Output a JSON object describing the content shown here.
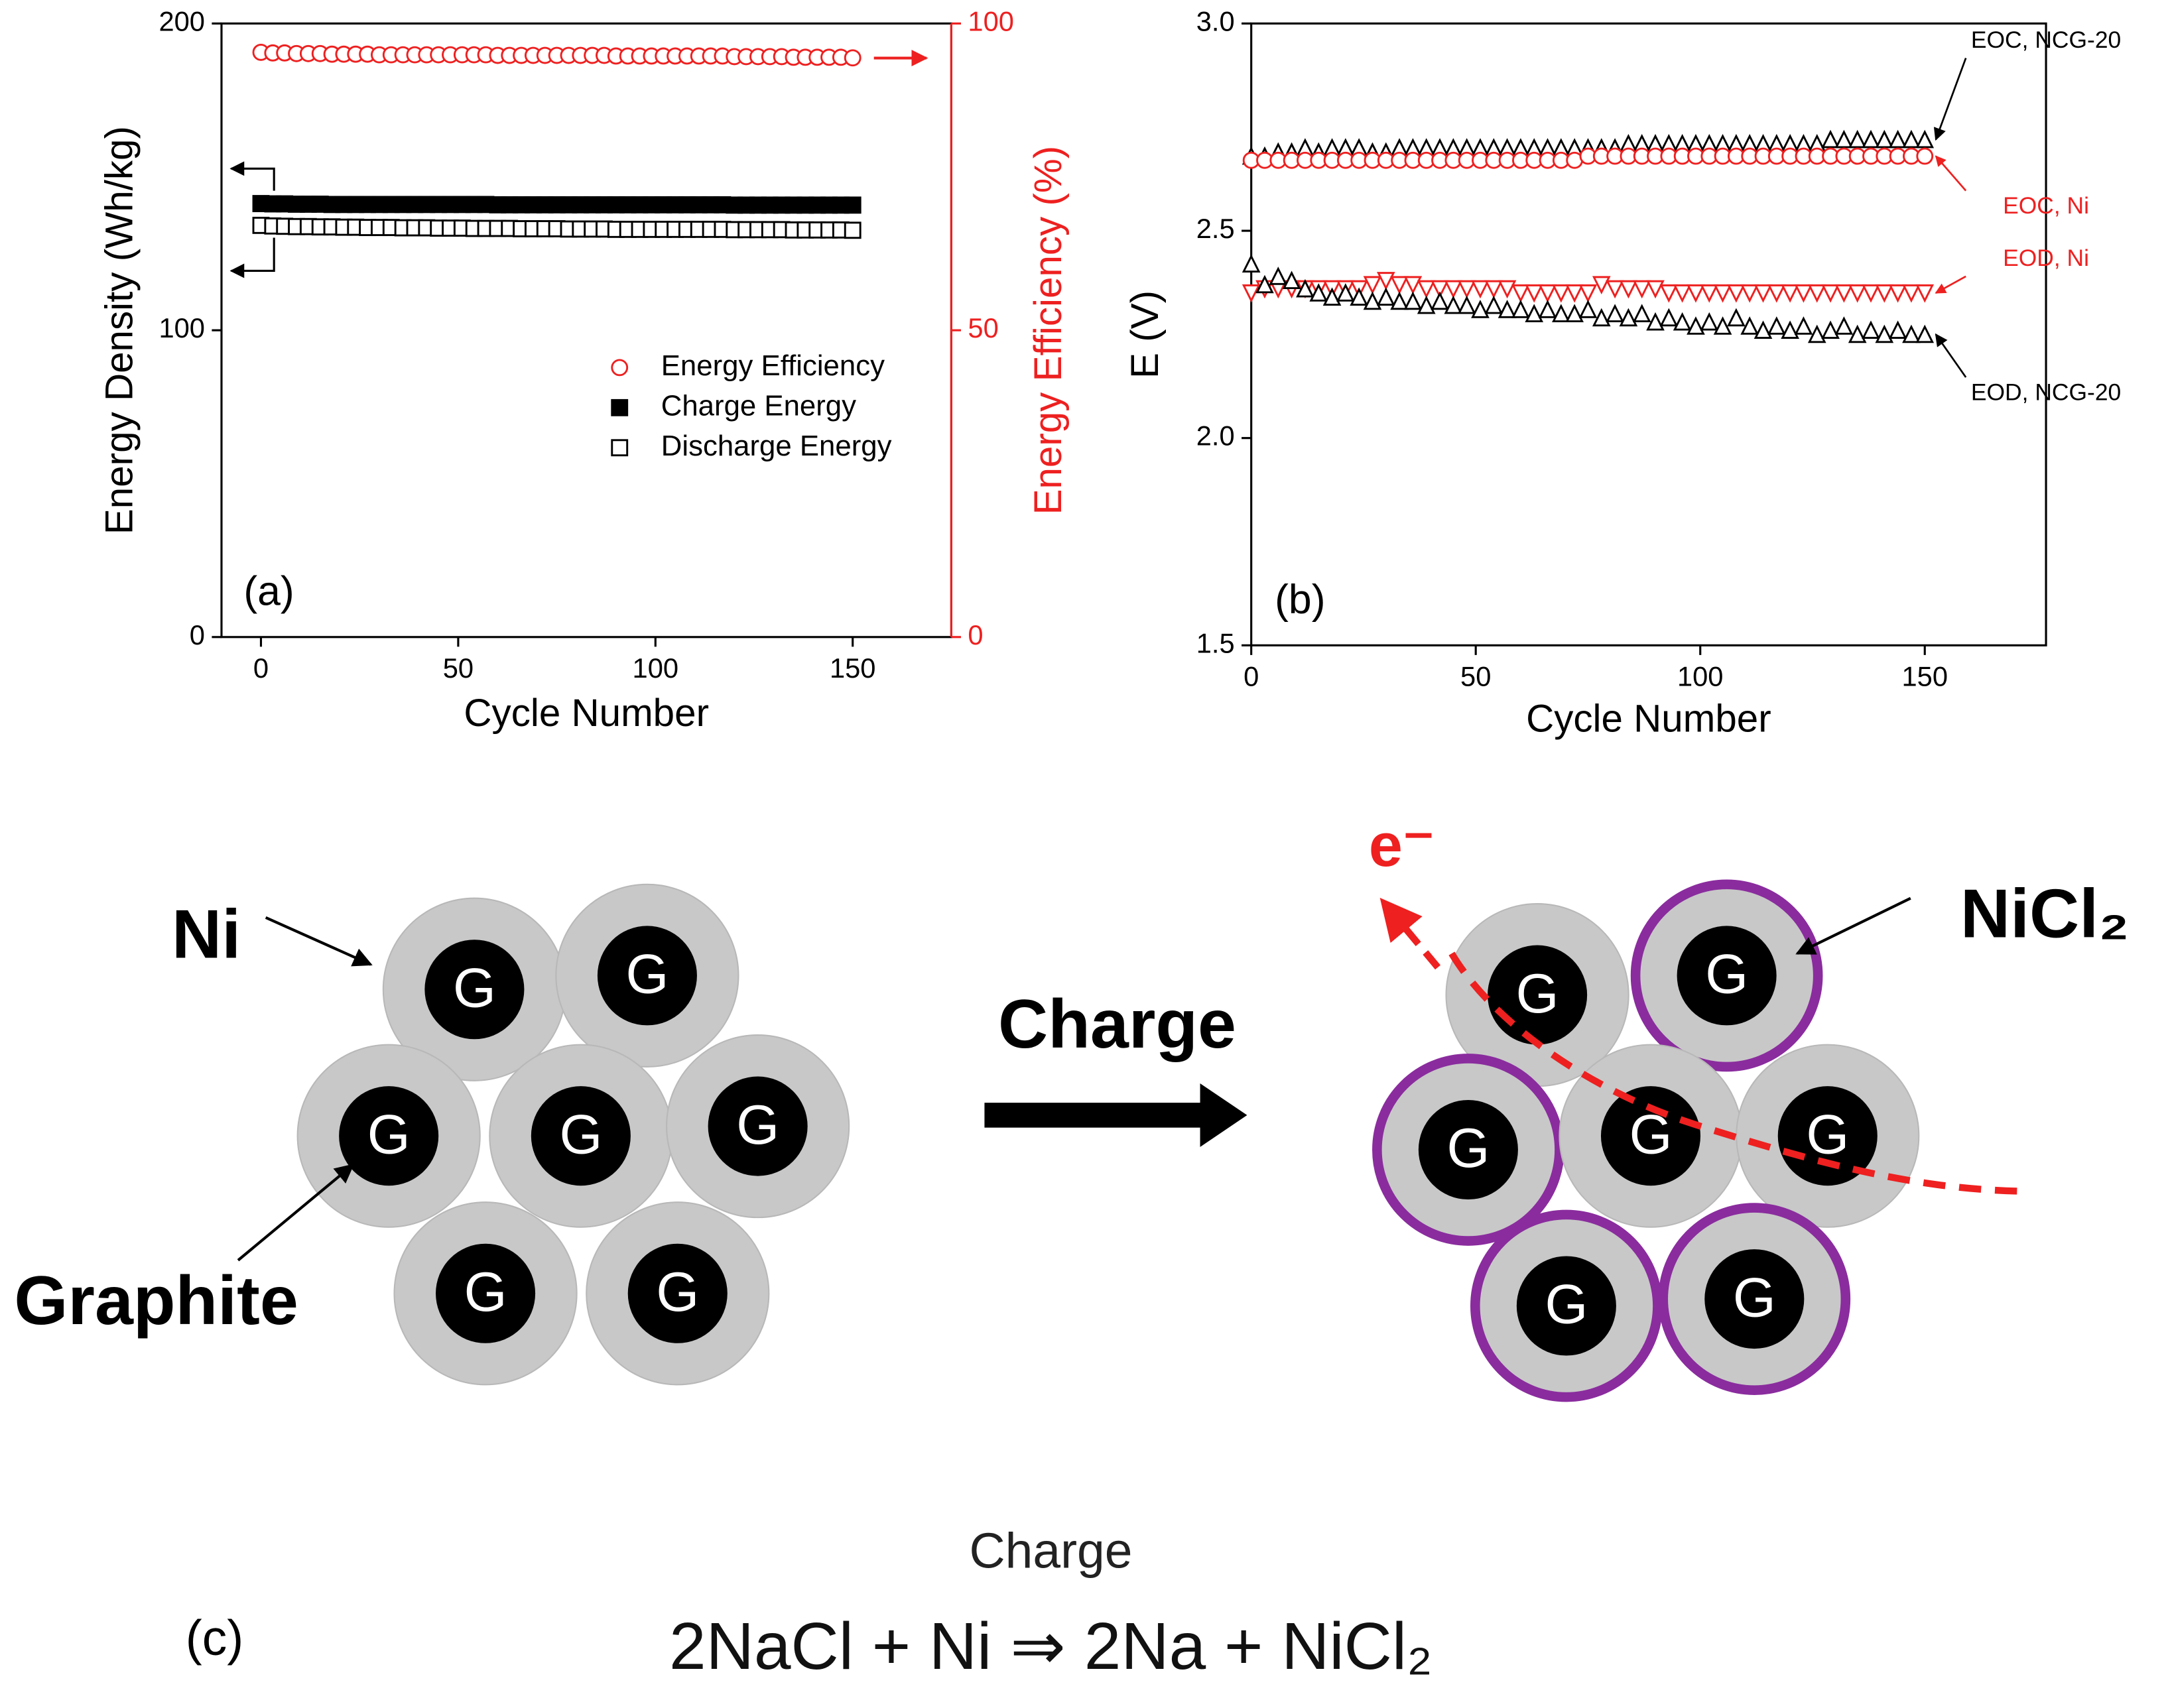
{
  "chart_data": [
    {
      "type": "scatter",
      "panel_label": "(a)",
      "xlabel": "Cycle Number",
      "ylabel": "Energy Density (Wh/kg)",
      "y2label": "Energy Efficiency (%)",
      "y2color": "#ee2020",
      "xlim": [
        -10,
        175
      ],
      "xticks": [
        0,
        50,
        100,
        150
      ],
      "ylim": [
        0,
        200
      ],
      "yticks": [
        0,
        100,
        200
      ],
      "y2lim": [
        0,
        100
      ],
      "y2ticks": [
        0,
        50,
        100
      ],
      "legend": "right",
      "x": [
        0,
        3,
        6,
        9,
        12,
        15,
        18,
        21,
        24,
        27,
        30,
        33,
        36,
        39,
        42,
        45,
        48,
        51,
        54,
        57,
        60,
        63,
        66,
        69,
        72,
        75,
        78,
        81,
        84,
        87,
        90,
        93,
        96,
        99,
        102,
        105,
        108,
        111,
        114,
        117,
        120,
        123,
        126,
        129,
        132,
        135,
        138,
        141,
        144,
        147,
        150
      ],
      "series": [
        {
          "name": "Energy Efficiency",
          "color": "#ee2020",
          "marker": "circle-open",
          "axis": "y2",
          "values": [
            95.3,
            95.2,
            95.2,
            95.1,
            95.1,
            95.1,
            95.0,
            95.0,
            95.0,
            95.0,
            94.9,
            94.9,
            94.9,
            94.9,
            94.9,
            94.9,
            94.9,
            94.9,
            94.9,
            94.9,
            94.8,
            94.8,
            94.8,
            94.8,
            94.8,
            94.8,
            94.8,
            94.8,
            94.8,
            94.8,
            94.7,
            94.7,
            94.7,
            94.7,
            94.7,
            94.7,
            94.7,
            94.7,
            94.7,
            94.7,
            94.6,
            94.6,
            94.6,
            94.6,
            94.6,
            94.5,
            94.5,
            94.5,
            94.5,
            94.5,
            94.4
          ]
        },
        {
          "name": "Charge Energy",
          "color": "#000000",
          "marker": "square-filled",
          "values": [
            141.3,
            141.2,
            141.2,
            141.1,
            141.1,
            141.1,
            141.0,
            141.0,
            141.0,
            141.0,
            141.0,
            141.0,
            141.0,
            141.0,
            141.0,
            141.0,
            141.0,
            141.0,
            141.0,
            141.0,
            140.9,
            140.9,
            140.9,
            140.9,
            140.9,
            140.9,
            140.9,
            140.9,
            140.9,
            140.9,
            140.9,
            140.9,
            140.9,
            140.9,
            140.9,
            140.9,
            140.9,
            140.9,
            140.9,
            140.9,
            140.8,
            140.8,
            140.8,
            140.8,
            140.8,
            140.8,
            140.8,
            140.8,
            140.8,
            140.8,
            140.8
          ]
        },
        {
          "name": "Discharge Energy",
          "color": "#000000",
          "marker": "square-open",
          "values": [
            134.2,
            134.0,
            133.9,
            133.8,
            133.8,
            133.7,
            133.7,
            133.6,
            133.6,
            133.5,
            133.5,
            133.5,
            133.4,
            133.4,
            133.4,
            133.3,
            133.3,
            133.3,
            133.2,
            133.2,
            133.2,
            133.2,
            133.1,
            133.1,
            133.1,
            133.1,
            133.0,
            133.0,
            133.0,
            133.0,
            132.9,
            132.9,
            132.9,
            132.9,
            132.9,
            132.9,
            132.9,
            132.9,
            132.9,
            132.9,
            132.8,
            132.8,
            132.8,
            132.8,
            132.8,
            132.7,
            132.7,
            132.7,
            132.7,
            132.7,
            132.6
          ]
        }
      ]
    },
    {
      "type": "scatter",
      "panel_label": "(b)",
      "xlabel": "Cycle Number",
      "ylabel": "E (V)",
      "xlim": [
        0,
        177
      ],
      "xticks": [
        0,
        50,
        100,
        150
      ],
      "ylim": [
        1.5,
        3.0
      ],
      "yticks": [
        1.5,
        {
          "value": 2,
          "label": "2.0"
        },
        2.5,
        {
          "value": 3,
          "label": "3.0"
        }
      ],
      "series_labels": "end",
      "x": [
        0,
        3,
        6,
        9,
        12,
        15,
        18,
        21,
        24,
        27,
        30,
        33,
        36,
        39,
        42,
        45,
        48,
        51,
        54,
        57,
        60,
        63,
        66,
        69,
        72,
        75,
        78,
        81,
        84,
        87,
        90,
        93,
        96,
        99,
        102,
        105,
        108,
        111,
        114,
        117,
        120,
        123,
        126,
        129,
        132,
        135,
        138,
        141,
        144,
        147,
        150
      ],
      "series": [
        {
          "name": "EOC, NCG-20",
          "color": "#000000",
          "marker": "triangle-up-open",
          "values": [
            2.68,
            2.68,
            2.69,
            2.69,
            2.7,
            2.69,
            2.7,
            2.7,
            2.7,
            2.69,
            2.69,
            2.7,
            2.7,
            2.7,
            2.7,
            2.7,
            2.7,
            2.7,
            2.7,
            2.7,
            2.7,
            2.7,
            2.7,
            2.7,
            2.7,
            2.7,
            2.7,
            2.7,
            2.71,
            2.71,
            2.71,
            2.71,
            2.71,
            2.71,
            2.71,
            2.71,
            2.71,
            2.71,
            2.71,
            2.71,
            2.71,
            2.71,
            2.71,
            2.72,
            2.72,
            2.72,
            2.72,
            2.72,
            2.72,
            2.72,
            2.72
          ]
        },
        {
          "name": "EOC, Ni",
          "color": "#ee2020",
          "marker": "circle-open",
          "values": [
            2.67,
            2.67,
            2.67,
            2.67,
            2.67,
            2.67,
            2.67,
            2.67,
            2.67,
            2.67,
            2.67,
            2.67,
            2.67,
            2.67,
            2.67,
            2.67,
            2.67,
            2.67,
            2.67,
            2.67,
            2.67,
            2.67,
            2.67,
            2.67,
            2.67,
            2.68,
            2.68,
            2.68,
            2.68,
            2.68,
            2.68,
            2.68,
            2.68,
            2.68,
            2.68,
            2.68,
            2.68,
            2.68,
            2.68,
            2.68,
            2.68,
            2.68,
            2.68,
            2.68,
            2.68,
            2.68,
            2.68,
            2.68,
            2.68,
            2.68,
            2.68
          ]
        },
        {
          "name": "EOD, Ni",
          "color": "#ee2020",
          "marker": "triangle-down-open",
          "values": [
            2.35,
            2.36,
            2.36,
            2.36,
            2.36,
            2.36,
            2.36,
            2.36,
            2.36,
            2.37,
            2.38,
            2.37,
            2.37,
            2.36,
            2.36,
            2.36,
            2.36,
            2.36,
            2.36,
            2.36,
            2.35,
            2.35,
            2.35,
            2.35,
            2.35,
            2.35,
            2.37,
            2.36,
            2.36,
            2.36,
            2.36,
            2.35,
            2.35,
            2.35,
            2.35,
            2.35,
            2.35,
            2.35,
            2.35,
            2.35,
            2.35,
            2.35,
            2.35,
            2.35,
            2.35,
            2.35,
            2.35,
            2.35,
            2.35,
            2.35,
            2.35
          ]
        },
        {
          "name": "EOD, NCG-20",
          "color": "#000000",
          "marker": "triangle-up-open",
          "values": [
            2.42,
            2.37,
            2.39,
            2.38,
            2.36,
            2.35,
            2.34,
            2.35,
            2.34,
            2.33,
            2.34,
            2.33,
            2.33,
            2.32,
            2.33,
            2.32,
            2.32,
            2.31,
            2.32,
            2.31,
            2.31,
            2.3,
            2.31,
            2.3,
            2.3,
            2.31,
            2.29,
            2.3,
            2.29,
            2.3,
            2.28,
            2.29,
            2.28,
            2.27,
            2.28,
            2.27,
            2.29,
            2.27,
            2.26,
            2.27,
            2.26,
            2.27,
            2.25,
            2.26,
            2.27,
            2.25,
            2.26,
            2.25,
            2.26,
            2.25,
            2.25
          ]
        }
      ]
    }
  ],
  "diagram": {
    "ni_label": "Ni",
    "graphite_label": "Graphite",
    "arrow_label": "Charge",
    "nicl2_label": "NiCl₂",
    "electron_label": "e⁻",
    "left_cluster": [
      "G",
      "G",
      "G",
      "G",
      "G",
      "G",
      "G"
    ],
    "right_cluster": [
      "G",
      "G",
      "G",
      "G",
      "G",
      "G",
      "G"
    ],
    "panel_label": "(c)",
    "reaction_condition": "Charge",
    "reaction": "2NaCl + Ni ⇒ 2Na + NiCl₂"
  }
}
